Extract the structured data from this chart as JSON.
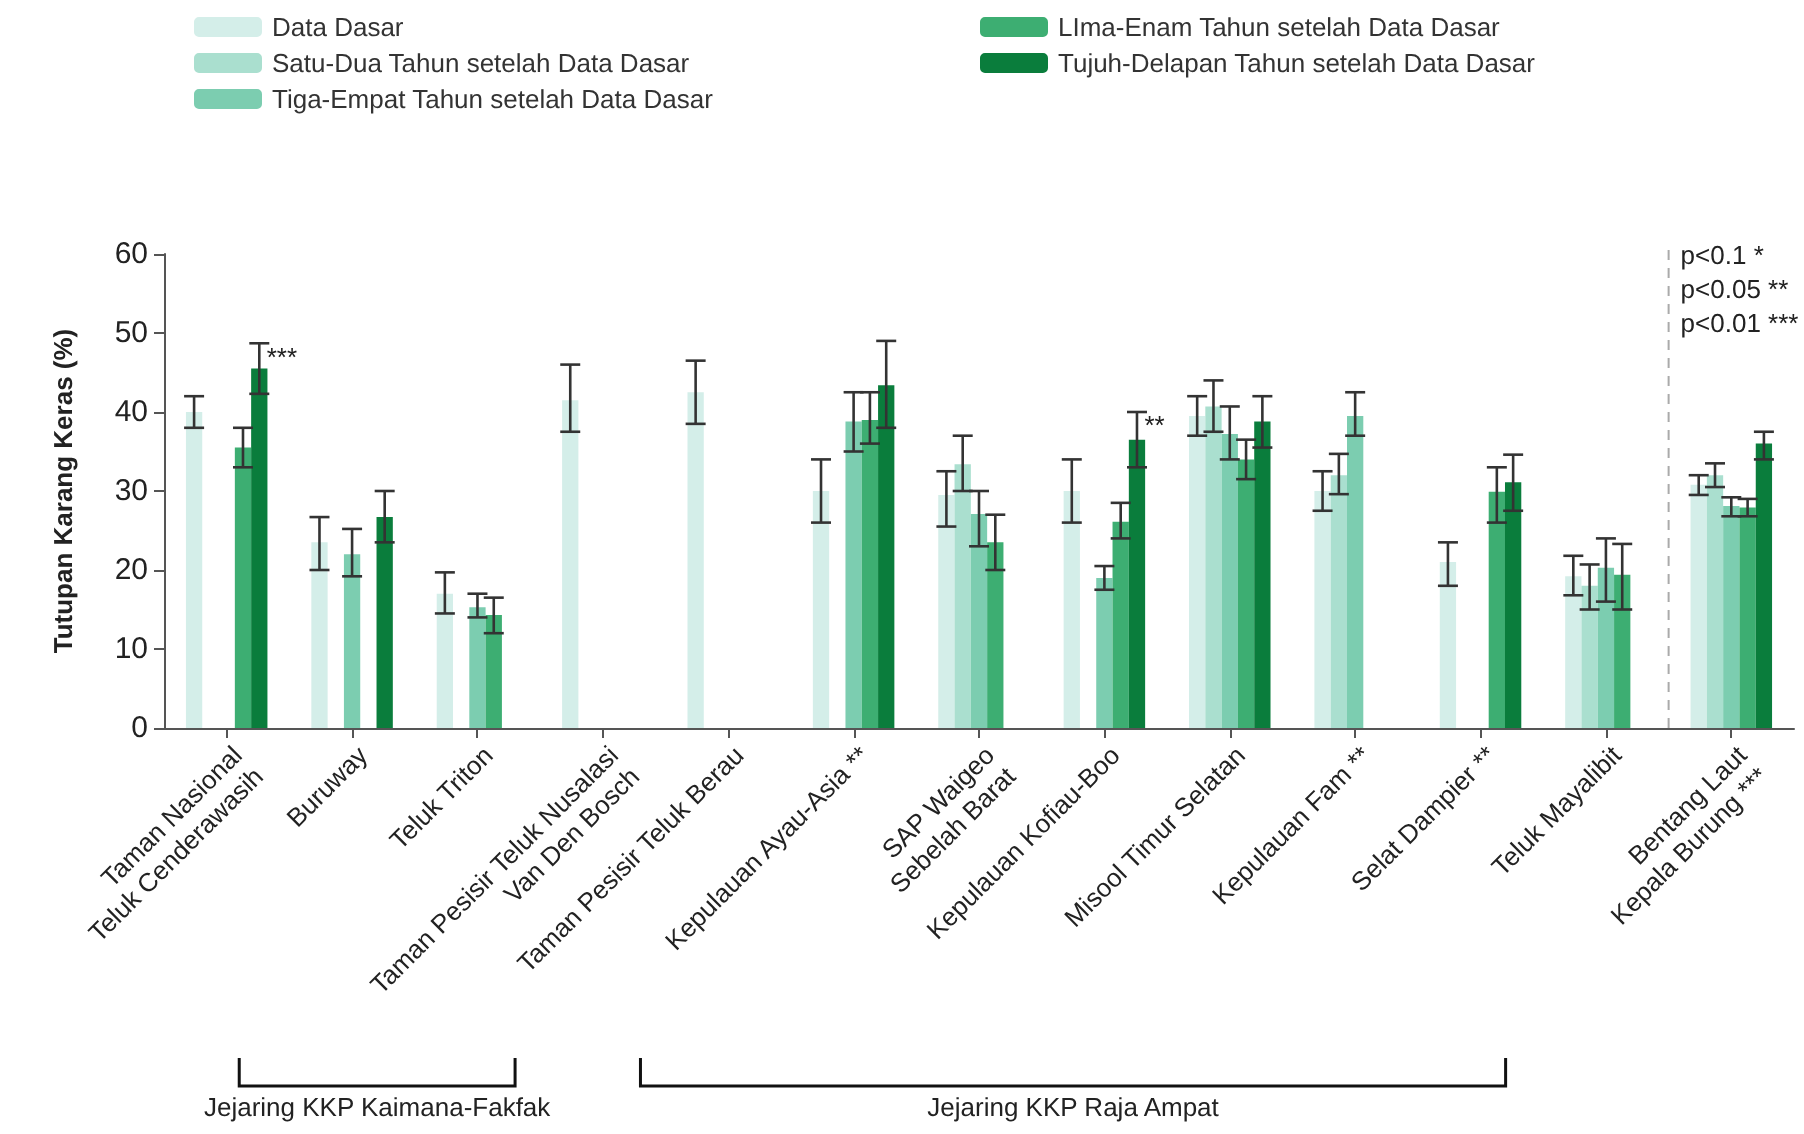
{
  "chart_data": {
    "type": "bar",
    "ylabel": "Tutupan Karang Keras (%)",
    "categories": [
      "Taman Nasional\nTeluk Cenderawasih",
      "Buruway",
      "Teluk Triton",
      "Taman Pesisir Teluk Nusalasi\nVan Den Bosch",
      "Taman Pesisir Teluk Berau",
      "Kepulauan Ayau-Asia **",
      "SAP Waigeo\nSebelah Barat",
      "Kepulauan Kofiau-Boo",
      "Misool Timur Selatan",
      "Kepulauan Fam **",
      "Selat Dampier **",
      "Teluk Mayalibit",
      "Bentang Laut\nKepala Burung ***"
    ],
    "series": [
      {
        "name": "Data Dasar",
        "color": "#d4eee9",
        "values": [
          40,
          23.5,
          17,
          41.5,
          42.5,
          30,
          29.5,
          30,
          39.5,
          30,
          21,
          19.2,
          30.8
        ],
        "errors": [
          [
            38,
            42
          ],
          [
            20,
            26.7
          ],
          [
            14.5,
            19.7
          ],
          [
            37.5,
            46
          ],
          [
            38.5,
            46.5
          ],
          [
            26,
            34
          ],
          [
            25.5,
            32.5
          ],
          [
            26,
            34
          ],
          [
            37,
            42
          ],
          [
            27.5,
            32.5
          ],
          [
            18,
            23.5
          ],
          [
            16.8,
            21.8
          ],
          [
            29.5,
            32
          ]
        ]
      },
      {
        "name": "Satu-Dua Tahun setelah Data Dasar",
        "color": "#aadfcf",
        "values": [
          null,
          null,
          null,
          null,
          null,
          null,
          33.4,
          null,
          40.7,
          32,
          null,
          18,
          32
        ],
        "errors": [
          null,
          null,
          null,
          null,
          null,
          null,
          [
            30,
            37
          ],
          null,
          [
            37.5,
            44
          ],
          [
            29.6,
            34.7
          ],
          null,
          [
            15,
            20.7
          ],
          [
            30.5,
            33.5
          ]
        ]
      },
      {
        "name": "Tiga-Empat Tahun setelah Data Dasar",
        "color": "#7ccdb0",
        "values": [
          null,
          22,
          15.3,
          null,
          null,
          38.8,
          27.1,
          19,
          37.2,
          39.5,
          null,
          20.3,
          28.1
        ],
        "errors": [
          null,
          [
            19.2,
            25.2
          ],
          [
            14,
            17
          ],
          null,
          null,
          [
            35,
            42.5
          ],
          [
            23,
            30
          ],
          [
            17.5,
            20.5
          ],
          [
            34,
            40.7
          ],
          [
            37,
            42.5
          ],
          null,
          [
            16,
            24
          ],
          [
            26.8,
            29.2
          ]
        ]
      },
      {
        "name": "LIma-Enam Tahun setelah Data Dasar",
        "color": "#3dae72",
        "values": [
          35.5,
          null,
          14.3,
          null,
          null,
          39,
          23.5,
          26.1,
          34,
          null,
          29.9,
          19.4,
          27.9
        ],
        "errors": [
          [
            33,
            38
          ],
          null,
          [
            12,
            16.5
          ],
          null,
          null,
          [
            36,
            42.5
          ],
          [
            20,
            27
          ],
          [
            24,
            28.5
          ],
          [
            31.5,
            36.5
          ],
          null,
          [
            26,
            33
          ],
          [
            15,
            23.3
          ],
          [
            26.8,
            29
          ]
        ]
      },
      {
        "name": "Tujuh-Delapan Tahun setelah Data Dasar",
        "color": "#0a7d3c",
        "values": [
          45.5,
          26.7,
          null,
          null,
          null,
          43.4,
          null,
          36.5,
          38.8,
          null,
          31.1,
          null,
          36
        ],
        "errors": [
          [
            42.3,
            48.7
          ],
          [
            23.5,
            30
          ],
          null,
          null,
          null,
          [
            38,
            49
          ],
          null,
          [
            33,
            40
          ],
          [
            35.5,
            42
          ],
          null,
          [
            27.5,
            34.6
          ],
          null,
          [
            34,
            37.5
          ]
        ]
      }
    ],
    "ylim": [
      0,
      60
    ],
    "yticks": [
      0,
      10,
      20,
      30,
      40,
      50,
      60
    ],
    "grid": false,
    "legend": "top left",
    "annotations": [
      "***",
      "**",
      "p<0.1 *",
      "p<0.05 **",
      "p<0.01 ***",
      "Jejaring KKP Kaimana-Fakfak",
      "Jejaring KKP Raja Ampat"
    ]
  }
}
